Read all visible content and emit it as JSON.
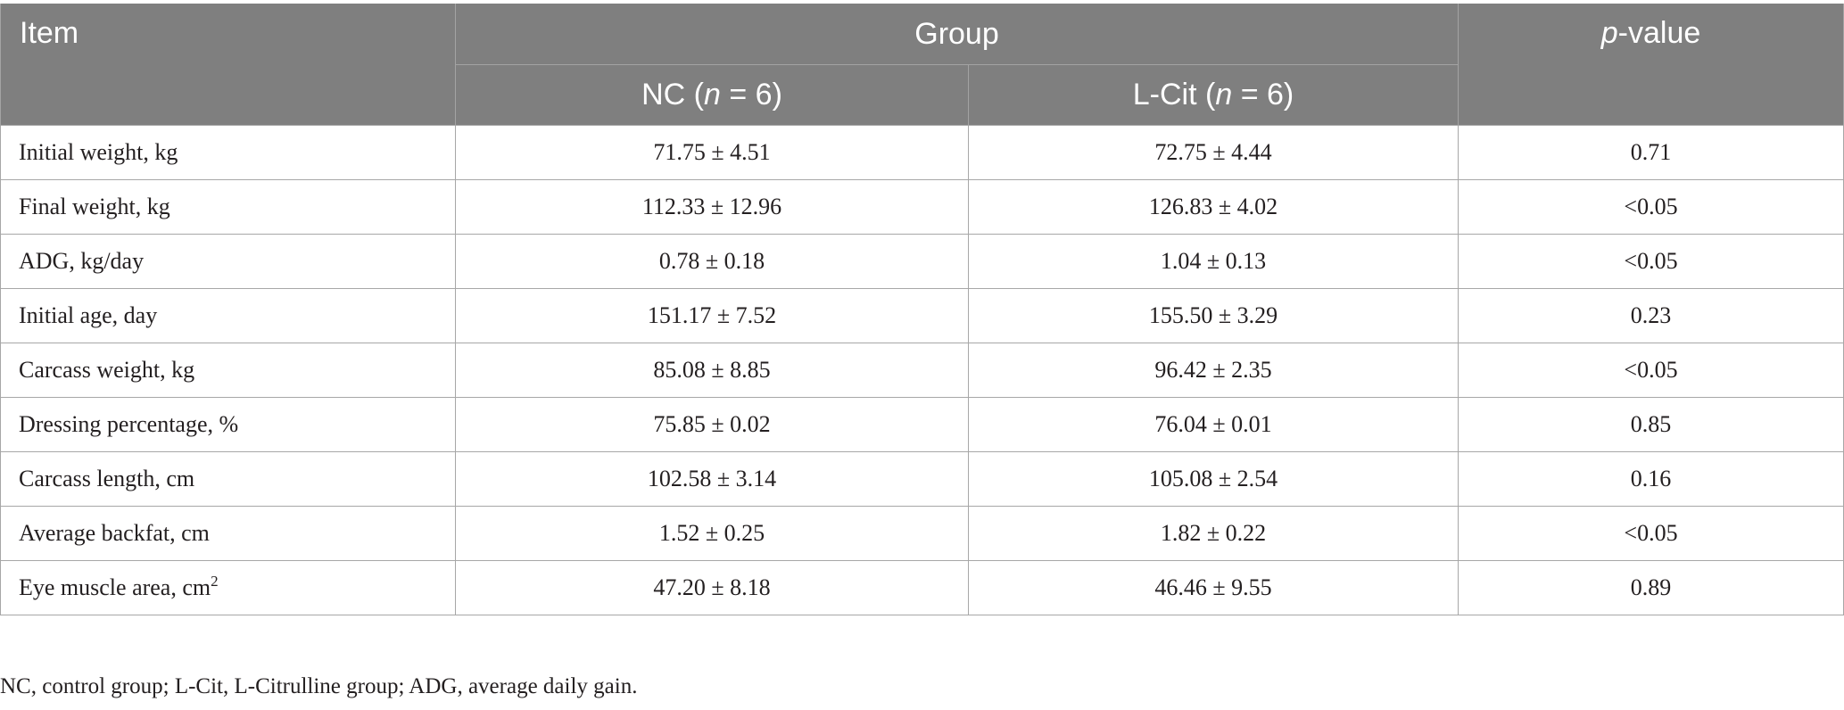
{
  "table": {
    "header": {
      "item": "Item",
      "group": "Group",
      "p_italic": "p",
      "p_rest": "-value",
      "nc_prefix": "NC (",
      "nc_n": "n",
      "nc_suffix": " = 6)",
      "lcit_prefix": "L-Cit (",
      "lcit_n": "n",
      "lcit_suffix": " = 6)"
    },
    "rows": [
      {
        "item": "Initial weight, kg",
        "nc": "71.75 ± 4.51",
        "lcit": "72.75 ± 4.44",
        "p": "0.71"
      },
      {
        "item": "Final weight, kg",
        "nc": "112.33 ± 12.96",
        "lcit": "126.83 ± 4.02",
        "p": "<0.05"
      },
      {
        "item": "ADG, kg/day",
        "nc": "0.78 ± 0.18",
        "lcit": "1.04 ± 0.13",
        "p": "<0.05"
      },
      {
        "item": "Initial age, day",
        "nc": "151.17 ± 7.52",
        "lcit": "155.50 ± 3.29",
        "p": "0.23"
      },
      {
        "item": "Carcass weight, kg",
        "nc": "85.08 ± 8.85",
        "lcit": "96.42 ± 2.35",
        "p": "<0.05"
      },
      {
        "item": "Dressing percentage, %",
        "nc": "75.85 ± 0.02",
        "lcit": "76.04 ± 0.01",
        "p": "0.85"
      },
      {
        "item": "Carcass length, cm",
        "nc": "102.58 ± 3.14",
        "lcit": "105.08 ± 2.54",
        "p": "0.16"
      },
      {
        "item": "Average backfat, cm",
        "nc": "1.52 ± 0.25",
        "lcit": "1.82 ± 0.22",
        "p": "<0.05"
      },
      {
        "item": "Eye muscle area, cm",
        "item_sup": "2",
        "nc": "47.20 ± 8.18",
        "lcit": "46.46 ± 9.55",
        "p": "0.89"
      }
    ]
  },
  "footnote": "NC, control group; L-Cit, L-Citrulline group; ADG, average daily gain.",
  "colors": {
    "header_bg": "#7f7f7f",
    "header_text": "#ffffff",
    "body_text": "#231f20",
    "grid": "#a7a7a7"
  }
}
